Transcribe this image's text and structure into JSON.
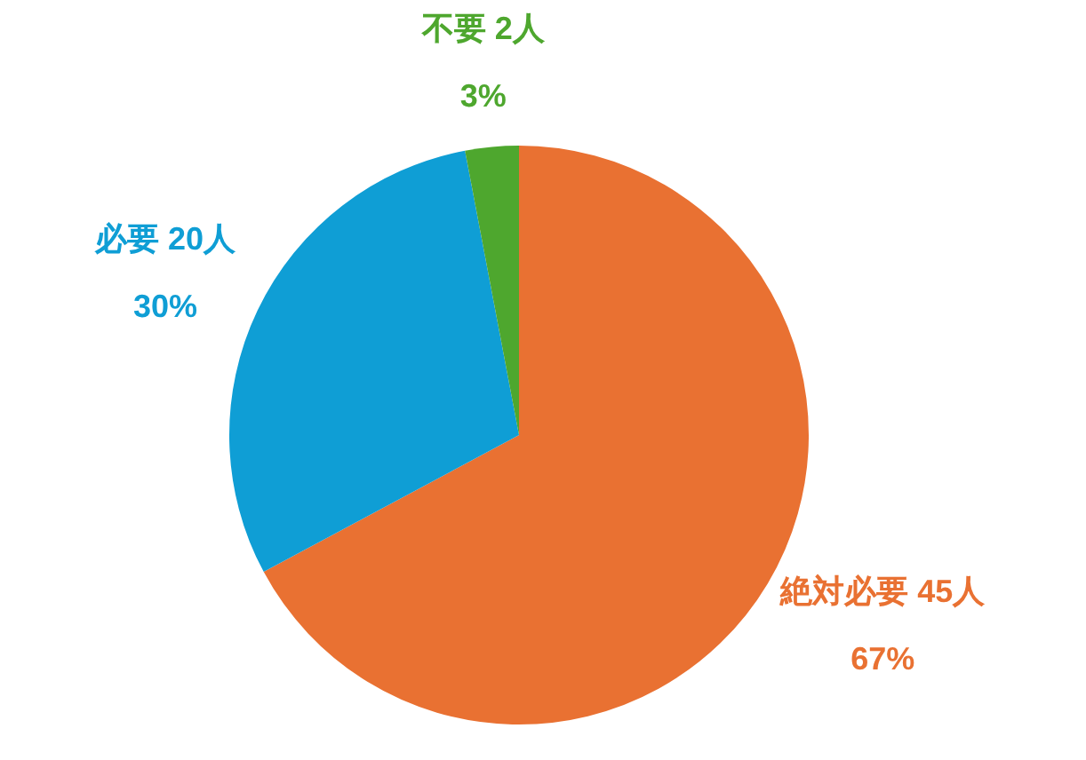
{
  "chart_data": {
    "type": "pie",
    "categories": [
      "絶対必要",
      "必要",
      "不要"
    ],
    "values": [
      45,
      20,
      2
    ],
    "colors": [
      "#e97132",
      "#0f9ed5",
      "#4ea72e"
    ],
    "value_labels": [
      "45人\n67%",
      "20人\n30%",
      "2人\n3%"
    ],
    "legend": false
  }
}
